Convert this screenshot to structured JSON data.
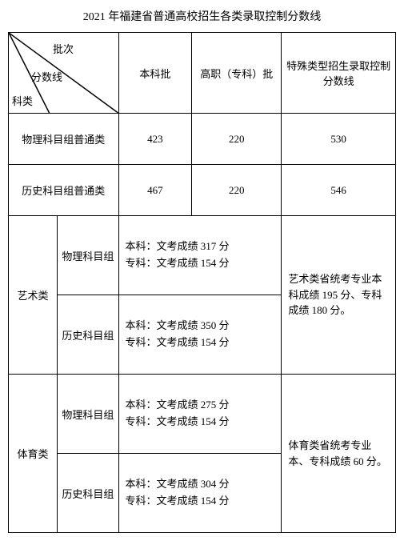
{
  "title": "2021 年福建省普通高校招生各类录取控制分数线",
  "diag": {
    "pici": "批次",
    "fenshuxian": "分数线",
    "kelei": "科类"
  },
  "headers": {
    "benke": "本科批",
    "gaozhi": "高职（专科）批",
    "teshu": "特殊类型招生录取控制分数线"
  },
  "rows": {
    "wuli_label": "物理科目组普通类",
    "wuli": {
      "benke": "423",
      "gaozhi": "220",
      "teshu": "530"
    },
    "lishi_label": "历史科目组普通类",
    "lishi": {
      "benke": "467",
      "gaozhi": "220",
      "teshu": "546"
    }
  },
  "groups": {
    "yishu": "艺术类",
    "tiyu": "体育类",
    "wuli_sub": "物理科目组",
    "lishi_sub": "历史科目组"
  },
  "art": {
    "wuli_text": "本科：文考成绩 317 分\n专科：文考成绩  154  分",
    "lishi_text": "本科：文考成绩 350 分\n专科：文考成绩  154  分",
    "note": "艺术类省统考专业本科成绩 195 分、专科成绩 180 分。"
  },
  "sport": {
    "wuli_text": "本科：文考成绩 275 分\n专科：文考成绩  154  分",
    "lishi_text": "本科：文考成绩 304 分\n专科：文考成绩  154  分",
    "note": "体育类省统考专业本、专科成绩 60 分。"
  }
}
